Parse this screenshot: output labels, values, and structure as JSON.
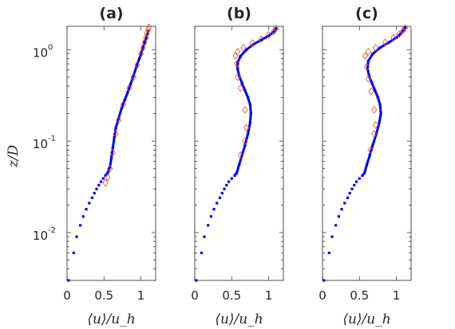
{
  "chart_data": [
    {
      "type": "scatter",
      "title": "(a)",
      "xlabel": "⟨u⟩/u_h",
      "ylabel": "z/D",
      "yscale": "log",
      "xlim": [
        0,
        1.2
      ],
      "ylim": [
        0.003,
        1.8
      ],
      "xticks": [
        "0",
        "0.5",
        "1"
      ],
      "yticks": [
        {
          "base": "10",
          "exp": "-2"
        },
        {
          "base": "10",
          "exp": "-1"
        },
        {
          "base": "10",
          "exp": "0"
        }
      ],
      "series": [
        {
          "marker": "square",
          "color": "#0000ff",
          "points": [
            [
              0.02,
              0.003
            ],
            [
              0.09,
              0.006
            ],
            [
              0.13,
              0.009
            ],
            [
              0.18,
              0.012
            ],
            [
              0.22,
              0.015
            ],
            [
              0.26,
              0.018
            ],
            [
              0.3,
              0.021
            ],
            [
              0.34,
              0.024
            ],
            [
              0.37,
              0.027
            ],
            [
              0.4,
              0.03
            ],
            [
              0.43,
              0.033
            ],
            [
              0.46,
              0.036
            ],
            [
              0.49,
              0.039
            ],
            [
              0.52,
              0.042
            ],
            [
              0.55,
              0.045
            ],
            [
              0.58,
              0.052
            ],
            [
              0.6,
              0.065
            ],
            [
              0.62,
              0.085
            ],
            [
              0.64,
              0.11
            ],
            [
              0.66,
              0.14
            ],
            [
              0.7,
              0.18
            ],
            [
              0.74,
              0.23
            ],
            [
              0.78,
              0.28
            ],
            [
              0.82,
              0.34
            ],
            [
              0.86,
              0.42
            ],
            [
              0.9,
              0.52
            ],
            [
              0.94,
              0.65
            ],
            [
              0.98,
              0.8
            ],
            [
              1.02,
              1.0
            ],
            [
              1.05,
              1.2
            ],
            [
              1.08,
              1.4
            ],
            [
              1.1,
              1.6
            ]
          ]
        },
        {
          "marker": "diamond",
          "color": "#d95319",
          "points": [
            [
              0.52,
              0.035
            ],
            [
              0.55,
              0.04
            ],
            [
              0.58,
              0.05
            ],
            [
              0.62,
              0.075
            ],
            [
              0.66,
              0.12
            ],
            [
              0.7,
              0.17
            ],
            [
              0.76,
              0.25
            ],
            [
              0.84,
              0.38
            ],
            [
              0.9,
              0.5
            ],
            [
              0.95,
              0.68
            ],
            [
              1.0,
              0.9
            ],
            [
              1.03,
              1.05
            ],
            [
              1.05,
              1.2
            ],
            [
              1.07,
              1.35
            ],
            [
              1.08,
              1.5
            ],
            [
              1.1,
              1.65
            ],
            [
              1.11,
              1.75
            ]
          ]
        }
      ]
    },
    {
      "type": "scatter",
      "title": "(b)",
      "xlabel": "⟨u⟩/u_h",
      "yscale": "log",
      "xlim": [
        0,
        1.2
      ],
      "ylim": [
        0.003,
        1.8
      ],
      "xticks": [
        "0",
        "0.5",
        "1"
      ],
      "series": [
        {
          "marker": "square",
          "color": "#0000ff",
          "points": [
            [
              0.02,
              0.003
            ],
            [
              0.09,
              0.006
            ],
            [
              0.13,
              0.009
            ],
            [
              0.18,
              0.012
            ],
            [
              0.22,
              0.015
            ],
            [
              0.26,
              0.018
            ],
            [
              0.3,
              0.021
            ],
            [
              0.34,
              0.024
            ],
            [
              0.37,
              0.027
            ],
            [
              0.4,
              0.03
            ],
            [
              0.43,
              0.033
            ],
            [
              0.46,
              0.036
            ],
            [
              0.5,
              0.039
            ],
            [
              0.54,
              0.042
            ],
            [
              0.57,
              0.045
            ],
            [
              0.6,
              0.055
            ],
            [
              0.64,
              0.07
            ],
            [
              0.68,
              0.09
            ],
            [
              0.72,
              0.12
            ],
            [
              0.75,
              0.16
            ],
            [
              0.76,
              0.2
            ],
            [
              0.75,
              0.25
            ],
            [
              0.72,
              0.3
            ],
            [
              0.68,
              0.36
            ],
            [
              0.64,
              0.43
            ],
            [
              0.6,
              0.52
            ],
            [
              0.58,
              0.62
            ],
            [
              0.58,
              0.72
            ],
            [
              0.62,
              0.85
            ],
            [
              0.7,
              1.0
            ],
            [
              0.8,
              1.15
            ],
            [
              0.92,
              1.3
            ],
            [
              1.02,
              1.45
            ],
            [
              1.08,
              1.6
            ],
            [
              1.1,
              1.7
            ]
          ]
        },
        {
          "marker": "diamond",
          "color": "#d95319",
          "points": [
            [
              0.62,
              0.07
            ],
            [
              0.68,
              0.1
            ],
            [
              0.7,
              0.14
            ],
            [
              0.68,
              0.22
            ],
            [
              0.62,
              0.38
            ],
            [
              0.58,
              0.5
            ],
            [
              0.57,
              0.7
            ],
            [
              0.55,
              0.85
            ],
            [
              0.58,
              0.95
            ],
            [
              0.66,
              1.05
            ],
            [
              0.78,
              1.18
            ],
            [
              0.9,
              1.3
            ],
            [
              1.0,
              1.45
            ],
            [
              1.07,
              1.58
            ],
            [
              1.1,
              1.7
            ]
          ]
        }
      ]
    },
    {
      "type": "scatter",
      "title": "(c)",
      "xlabel": "⟨u⟩/u_h",
      "yscale": "log",
      "xlim": [
        0,
        1.2
      ],
      "ylim": [
        0.003,
        1.8
      ],
      "xticks": [
        "0",
        "0.5",
        "1"
      ],
      "series": [
        {
          "marker": "square",
          "color": "#0000ff",
          "points": [
            [
              0.02,
              0.003
            ],
            [
              0.09,
              0.006
            ],
            [
              0.13,
              0.009
            ],
            [
              0.18,
              0.012
            ],
            [
              0.22,
              0.015
            ],
            [
              0.26,
              0.018
            ],
            [
              0.3,
              0.021
            ],
            [
              0.34,
              0.024
            ],
            [
              0.37,
              0.027
            ],
            [
              0.4,
              0.03
            ],
            [
              0.43,
              0.033
            ],
            [
              0.46,
              0.036
            ],
            [
              0.5,
              0.039
            ],
            [
              0.54,
              0.042
            ],
            [
              0.57,
              0.045
            ],
            [
              0.6,
              0.055
            ],
            [
              0.64,
              0.07
            ],
            [
              0.68,
              0.09
            ],
            [
              0.73,
              0.12
            ],
            [
              0.77,
              0.16
            ],
            [
              0.79,
              0.2
            ],
            [
              0.78,
              0.25
            ],
            [
              0.75,
              0.3
            ],
            [
              0.71,
              0.36
            ],
            [
              0.67,
              0.43
            ],
            [
              0.63,
              0.52
            ],
            [
              0.61,
              0.62
            ],
            [
              0.62,
              0.75
            ],
            [
              0.68,
              0.9
            ],
            [
              0.78,
              1.05
            ],
            [
              0.9,
              1.2
            ],
            [
              1.0,
              1.35
            ],
            [
              1.06,
              1.5
            ],
            [
              1.1,
              1.65
            ],
            [
              1.12,
              1.75
            ]
          ]
        },
        {
          "marker": "diamond",
          "color": "#d95319",
          "points": [
            [
              0.65,
              0.08
            ],
            [
              0.7,
              0.12
            ],
            [
              0.72,
              0.15
            ],
            [
              0.7,
              0.22
            ],
            [
              0.66,
              0.35
            ],
            [
              0.62,
              0.48
            ],
            [
              0.6,
              0.65
            ],
            [
              0.58,
              0.85
            ],
            [
              0.62,
              0.95
            ],
            [
              0.72,
              1.05
            ],
            [
              0.85,
              1.2
            ],
            [
              0.96,
              1.35
            ],
            [
              1.04,
              1.48
            ],
            [
              1.09,
              1.62
            ],
            [
              1.12,
              1.72
            ]
          ]
        }
      ]
    }
  ]
}
